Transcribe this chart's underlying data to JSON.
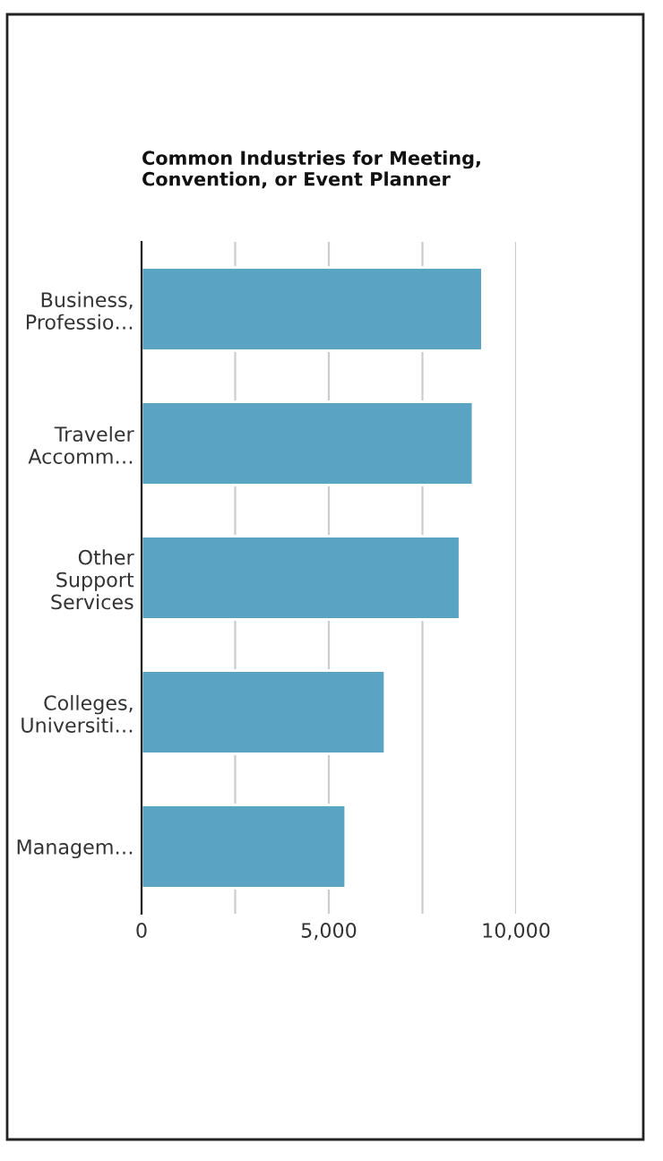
{
  "chart_data": {
    "type": "bar",
    "orientation": "horizontal",
    "title": "Common Industries for Meeting,\nConvention, or Event Planner",
    "categories": [
      "Business,\nProfessio…",
      "Traveler\nAccomm…",
      "Other\nSupport\nServices",
      "Colleges,\nUniversiti…",
      "Managem…"
    ],
    "values": [
      9100,
      8850,
      8500,
      6500,
      5450
    ],
    "color": "#5ba3c2",
    "xlim": [
      0,
      10000
    ],
    "xticks": [
      0,
      {
        "value": 2500,
        "label": null
      },
      {
        "value": 5000,
        "label": "5,000"
      },
      {
        "value": 7500,
        "label": null
      },
      {
        "value": 10000,
        "label": "10,000"
      }
    ],
    "grid": "x",
    "legend": false
  }
}
